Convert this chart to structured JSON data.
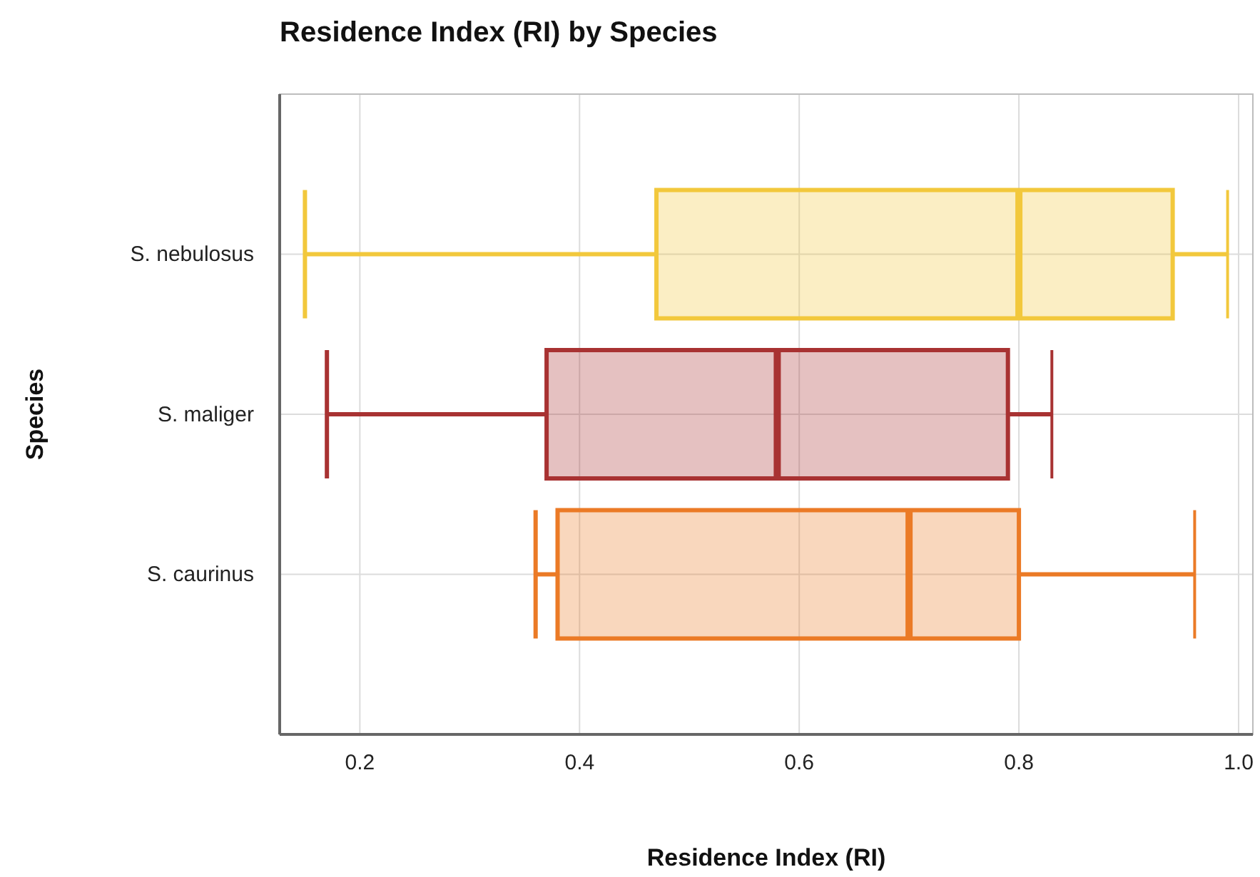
{
  "chart_data": {
    "type": "box",
    "title": "Residence Index (RI) by Species",
    "xlabel": "Residence Index (RI)",
    "ylabel": "Species",
    "orientation": "horizontal",
    "categories": [
      "S. nebulosus",
      "S. maliger",
      "S. caurinus"
    ],
    "colors": [
      "#f2c83c",
      "#a83232",
      "#eb7a26"
    ],
    "boxes": [
      {
        "low": 0.15,
        "q1": 0.47,
        "median": 0.8,
        "q3": 0.94,
        "high": 0.99
      },
      {
        "low": 0.17,
        "q1": 0.37,
        "median": 0.58,
        "q3": 0.79,
        "high": 0.83
      },
      {
        "low": 0.36,
        "q1": 0.38,
        "median": 0.7,
        "q3": 0.8,
        "high": 0.96
      }
    ],
    "xlim": [
      0.127,
      1.013
    ],
    "xticks": [
      0.2,
      0.4,
      0.6,
      0.8,
      {
        "value": 1,
        "label": "1.0"
      }
    ],
    "grid": true
  }
}
